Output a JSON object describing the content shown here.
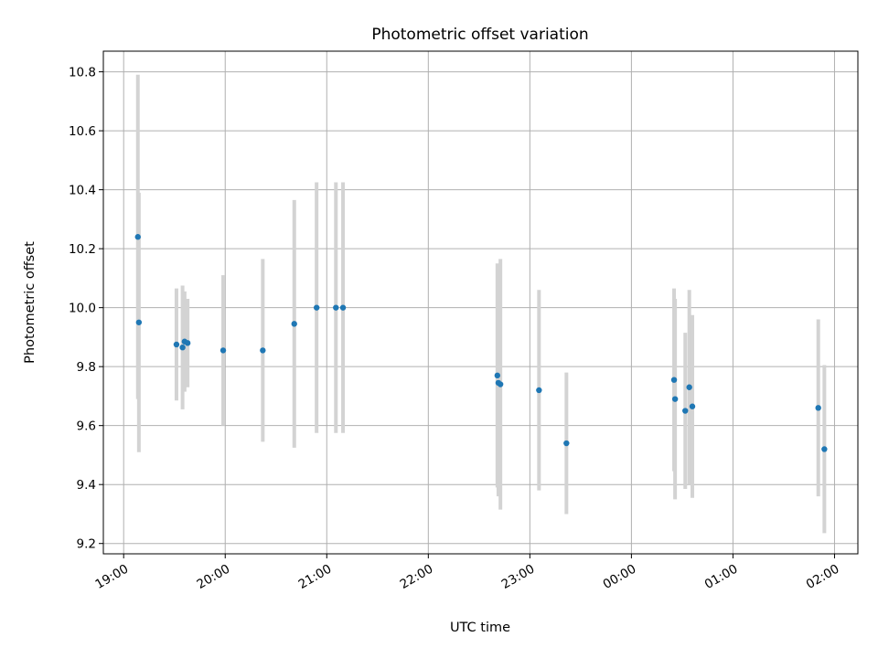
{
  "chart_data": {
    "type": "scatter",
    "title": "Photometric offset variation",
    "xlabel": "UTC time",
    "ylabel": "Photometric offset",
    "x_unit": "hours since 19:00 UTC",
    "xlim": [
      -0.2,
      7.23
    ],
    "ylim": [
      9.165,
      10.87
    ],
    "grid": true,
    "series_color": "#1f77b4",
    "errorbar_color": "#d3d3d3",
    "x_ticks": [
      {
        "value": 0,
        "label": "19:00"
      },
      {
        "value": 1,
        "label": "20:00"
      },
      {
        "value": 2,
        "label": "21:00"
      },
      {
        "value": 3,
        "label": "22:00"
      },
      {
        "value": 4,
        "label": "23:00"
      },
      {
        "value": 5,
        "label": "00:00"
      },
      {
        "value": 6,
        "label": "01:00"
      },
      {
        "value": 7,
        "label": "02:00"
      }
    ],
    "y_ticks": [
      {
        "value": 9.2,
        "label": "9.2"
      },
      {
        "value": 9.4,
        "label": "9.4"
      },
      {
        "value": 9.6,
        "label": "9.6"
      },
      {
        "value": 9.8,
        "label": "9.8"
      },
      {
        "value": 10.0,
        "label": "10.0"
      },
      {
        "value": 10.2,
        "label": "10.2"
      },
      {
        "value": 10.4,
        "label": "10.4"
      },
      {
        "value": 10.6,
        "label": "10.6"
      },
      {
        "value": 10.8,
        "label": "10.8"
      }
    ],
    "points": [
      {
        "x": 0.14,
        "y": 10.24,
        "err": 0.55
      },
      {
        "x": 0.15,
        "y": 9.95,
        "err": 0.44
      },
      {
        "x": 0.52,
        "y": 9.875,
        "err": 0.19
      },
      {
        "x": 0.58,
        "y": 9.865,
        "err": 0.21
      },
      {
        "x": 0.6,
        "y": 9.885,
        "err": 0.17
      },
      {
        "x": 0.63,
        "y": 9.88,
        "err": 0.15
      },
      {
        "x": 0.98,
        "y": 9.855,
        "err": 0.255
      },
      {
        "x": 1.37,
        "y": 9.855,
        "err": 0.31
      },
      {
        "x": 1.68,
        "y": 9.945,
        "err": 0.42
      },
      {
        "x": 1.9,
        "y": 10.0,
        "err": 0.425
      },
      {
        "x": 2.09,
        "y": 10.0,
        "err": 0.425
      },
      {
        "x": 2.16,
        "y": 10.0,
        "err": 0.425
      },
      {
        "x": 3.68,
        "y": 9.77,
        "err": 0.38
      },
      {
        "x": 3.69,
        "y": 9.745,
        "err": 0.385
      },
      {
        "x": 3.71,
        "y": 9.74,
        "err": 0.425
      },
      {
        "x": 4.09,
        "y": 9.72,
        "err": 0.34
      },
      {
        "x": 4.36,
        "y": 9.54,
        "err": 0.24
      },
      {
        "x": 5.42,
        "y": 9.755,
        "err": 0.31
      },
      {
        "x": 5.43,
        "y": 9.69,
        "err": 0.34
      },
      {
        "x": 5.53,
        "y": 9.65,
        "err": 0.265
      },
      {
        "x": 5.57,
        "y": 9.73,
        "err": 0.33
      },
      {
        "x": 5.6,
        "y": 9.665,
        "err": 0.31
      },
      {
        "x": 6.84,
        "y": 9.66,
        "err": 0.3
      },
      {
        "x": 6.9,
        "y": 9.52,
        "err": 0.285
      }
    ]
  }
}
